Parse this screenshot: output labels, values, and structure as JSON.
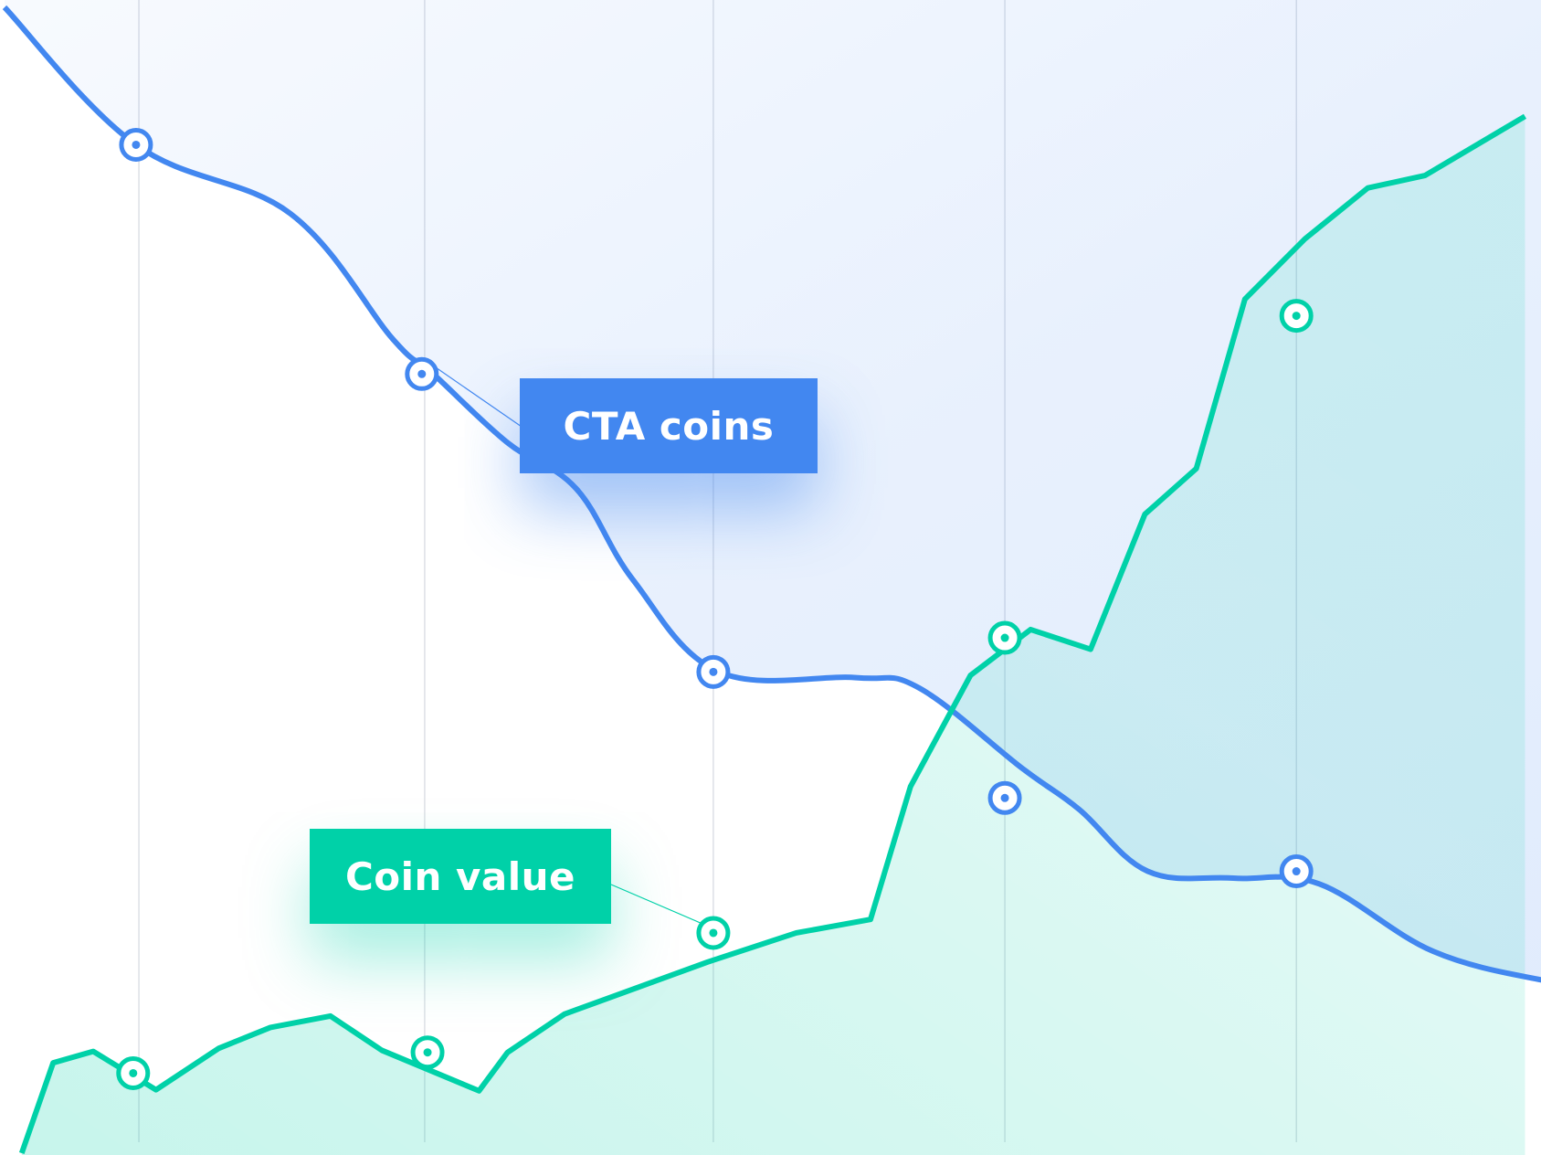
{
  "chart_data": {
    "type": "line",
    "title": "",
    "xlabel": "",
    "ylabel": "",
    "grid": "vertical",
    "colors": {
      "cta": "#4287f0",
      "coin": "#00d1a8"
    },
    "series": [
      {
        "name": "CTA coins",
        "color": "#4287f0",
        "x": [
          0.0,
          0.46,
          1.0,
          1.36,
          1.5,
          1.76,
          2.0,
          2.2,
          2.5,
          2.98,
          3.2,
          3.56,
          3.76,
          4.0,
          4.3,
          4.6,
          5.0,
          5.4,
          5.6
        ],
        "values": [
          100,
          88,
          82,
          71,
          68,
          62,
          58,
          50,
          42,
          41.5,
          40.6,
          33.6,
          30,
          24.6,
          24,
          23.5,
          17.6,
          15,
          14.4
        ],
        "markers": [
          [
            0.46,
            88
          ],
          [
            1.46,
            68
          ],
          [
            2.48,
            42
          ],
          [
            3.5,
            31
          ],
          [
            4.52,
            24.6
          ]
        ]
      },
      {
        "name": "Coin value",
        "color": "#00d1a8",
        "x": [
          0.06,
          0.17,
          0.31,
          0.53,
          0.75,
          0.93,
          1.14,
          1.32,
          1.66,
          1.76,
          1.96,
          2.17,
          2.46,
          2.77,
          3.03,
          3.17,
          3.38,
          3.59,
          3.8,
          3.99,
          4.17,
          4.34,
          4.55,
          4.77,
          4.97,
          5.32
        ],
        "values": [
          0,
          8.7,
          9.8,
          6.1,
          10.1,
          12.1,
          13.2,
          9.9,
          6.0,
          9.7,
          13.4,
          15.5,
          18.4,
          21.2,
          22.5,
          35.3,
          46.0,
          50.4,
          48.5,
          61.5,
          65.9,
          82.2,
          88.0,
          92.9,
          94.1,
          99.8
        ],
        "markers": [
          [
            0.45,
            7.7
          ],
          [
            1.48,
            9.7
          ],
          [
            2.48,
            21.2
          ],
          [
            3.5,
            49.6
          ],
          [
            4.52,
            80.6
          ]
        ]
      }
    ],
    "annotations": [
      {
        "text": "CTA coins",
        "points_to": [
          1.46,
          68
        ]
      },
      {
        "text": "Coin value",
        "points_to": [
          2.48,
          21.2
        ]
      }
    ],
    "xlim": [
      0,
      5.36
    ],
    "ylim": [
      0,
      100
    ],
    "gridlines_x": [
      0.47,
      1.47,
      2.48,
      3.5,
      4.52
    ]
  },
  "labels": {
    "cta": "CTA coins",
    "coin": "Coin value"
  }
}
